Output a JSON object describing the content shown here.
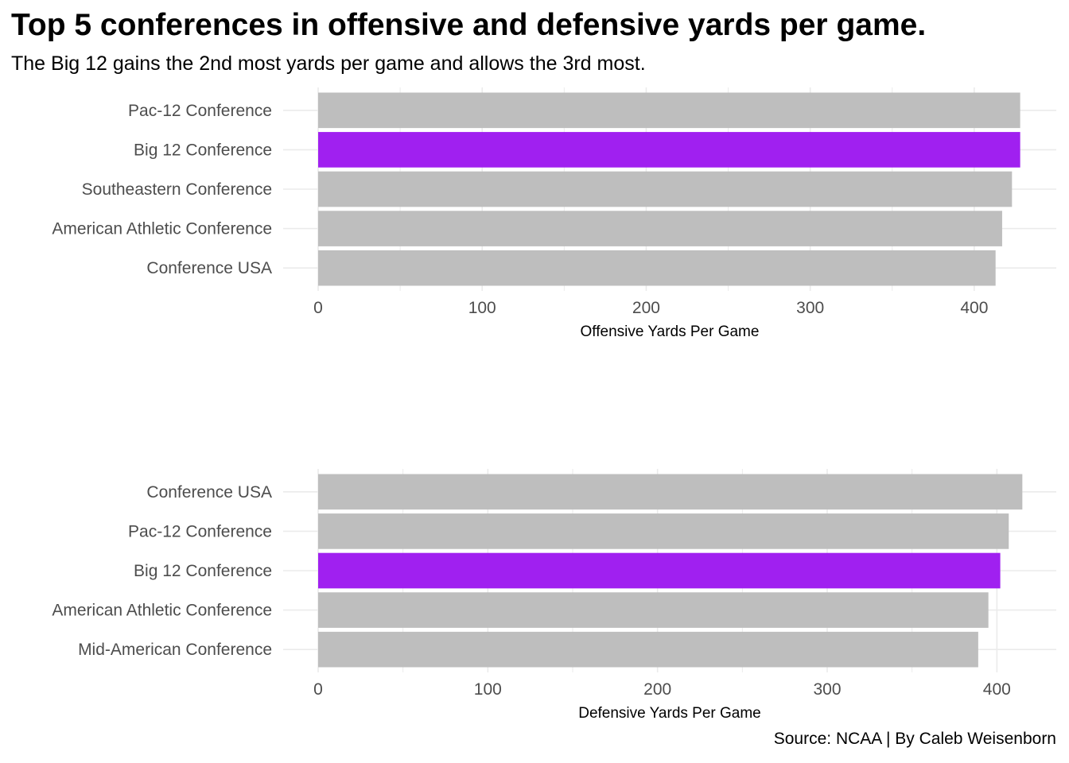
{
  "title": "Top 5 conferences in offensive and defensive yards per game.",
  "subtitle": "The Big 12 gains the 2nd most yards per game and allows the 3rd most.",
  "caption": "Source: NCAA | By Caleb Weisenborn",
  "colors": {
    "bar": "#bebebe",
    "highlight": "#a020f0",
    "grid": "#ebebeb",
    "text": "#4d4d4d"
  },
  "chart_data": [
    {
      "type": "bar",
      "orientation": "horizontal",
      "categories": [
        "Pac-12 Conference",
        "Big 12 Conference",
        "Southeastern Conference",
        "American Athletic Conference",
        "Conference USA"
      ],
      "values": [
        428,
        428,
        423,
        417,
        413
      ],
      "highlight": "Big 12 Conference",
      "xlabel": "Offensive Yards Per Game",
      "ylabel": "",
      "xlim": [
        0,
        450
      ],
      "xticks": [
        0,
        100,
        200,
        300,
        400
      ],
      "grid": true
    },
    {
      "type": "bar",
      "orientation": "horizontal",
      "categories": [
        "Conference USA",
        "Pac-12 Conference",
        "Big 12 Conference",
        "American Athletic Conference",
        "Mid-American Conference"
      ],
      "values": [
        415,
        407,
        402,
        395,
        389
      ],
      "highlight": "Big 12 Conference",
      "xlabel": "Defensive Yards Per Game",
      "ylabel": "",
      "xlim": [
        0,
        435
      ],
      "xticks": [
        0,
        100,
        200,
        300,
        400
      ],
      "grid": true
    }
  ]
}
